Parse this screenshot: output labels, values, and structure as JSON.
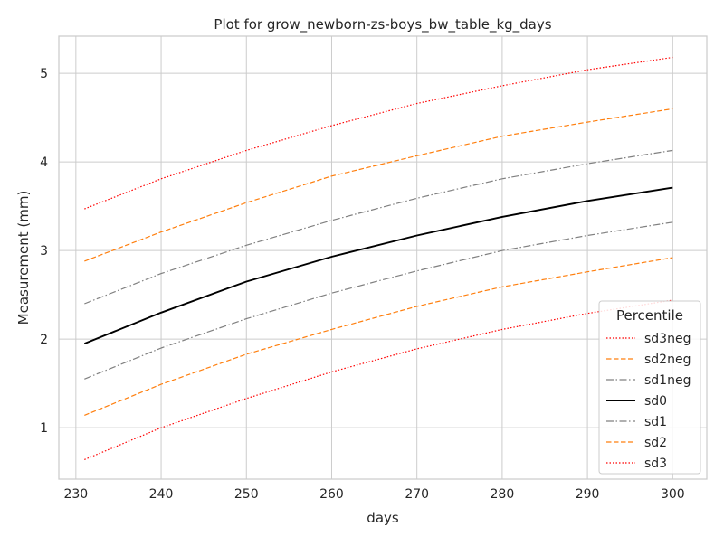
{
  "chart_data": {
    "type": "line",
    "title": "Plot for grow_newborn-zs-boys_bw_table_kg_days",
    "xlabel": "days",
    "ylabel": "Measurement (mm)",
    "xlim": [
      228,
      304
    ],
    "ylim": [
      0.42,
      5.42
    ],
    "x_ticks": [
      230,
      240,
      250,
      260,
      270,
      280,
      290,
      300
    ],
    "y_ticks": [
      1,
      2,
      3,
      4,
      5
    ],
    "grid": true,
    "legend": {
      "title": "Percentile",
      "position": "lower right"
    },
    "x": [
      231,
      240,
      250,
      260,
      270,
      280,
      290,
      300
    ],
    "series": [
      {
        "name": "sd3neg",
        "color": "#ff0000",
        "dash": "dotted",
        "values": [
          3.47,
          3.81,
          4.13,
          4.41,
          4.66,
          4.86,
          5.04,
          5.18
        ]
      },
      {
        "name": "sd2neg",
        "color": "#ff7f0e",
        "dash": "dashed",
        "values": [
          2.88,
          3.21,
          3.54,
          3.84,
          4.07,
          4.29,
          4.45,
          4.6
        ]
      },
      {
        "name": "sd1neg",
        "color": "#808080",
        "dash": "dashdot",
        "values": [
          2.4,
          2.74,
          3.06,
          3.34,
          3.59,
          3.81,
          3.98,
          4.13
        ]
      },
      {
        "name": "sd0",
        "color": "#000000",
        "dash": "solid",
        "values": [
          1.95,
          2.3,
          2.65,
          2.93,
          3.17,
          3.38,
          3.56,
          3.71
        ]
      },
      {
        "name": "sd1",
        "color": "#808080",
        "dash": "dashdot",
        "values": [
          1.55,
          1.9,
          2.23,
          2.52,
          2.77,
          3.0,
          3.17,
          3.32
        ]
      },
      {
        "name": "sd2",
        "color": "#ff7f0e",
        "dash": "dashed",
        "values": [
          1.14,
          1.49,
          1.83,
          2.11,
          2.37,
          2.59,
          2.76,
          2.92
        ]
      },
      {
        "name": "sd3",
        "color": "#ff0000",
        "dash": "dotted",
        "values": [
          0.64,
          1.0,
          1.33,
          1.63,
          1.89,
          2.11,
          2.29,
          2.44
        ]
      }
    ]
  }
}
